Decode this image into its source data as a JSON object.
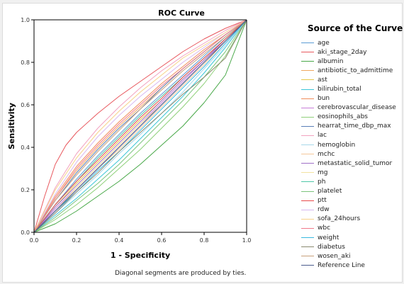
{
  "chart_data": {
    "type": "line",
    "title": "ROC Curve",
    "xlabel": "1 - Specificity",
    "ylabel": "Sensitivity",
    "xlim": [
      0.0,
      1.0
    ],
    "ylim": [
      0.0,
      1.0
    ],
    "xticks": [
      "0.0",
      "0.2",
      "0.4",
      "0.6",
      "0.8",
      "1.0"
    ],
    "yticks": [
      "0.0",
      "0.2",
      "0.4",
      "0.6",
      "0.8",
      "1.0"
    ],
    "grid": false,
    "legend_title": "Source of the Curve",
    "legend_position": "right",
    "footnote": "Diagonal segments are produced by ties.",
    "series": [
      {
        "name": "age",
        "color": "#5b9bd5",
        "points": [
          [
            0,
            0
          ],
          [
            0.1,
            0.13
          ],
          [
            0.2,
            0.25
          ],
          [
            0.3,
            0.36
          ],
          [
            0.4,
            0.46
          ],
          [
            0.5,
            0.56
          ],
          [
            0.6,
            0.65
          ],
          [
            0.7,
            0.74
          ],
          [
            0.8,
            0.83
          ],
          [
            0.9,
            0.92
          ],
          [
            1,
            1
          ]
        ]
      },
      {
        "name": "aki_stage_2day",
        "color": "#e8585e",
        "points": [
          [
            0,
            0
          ],
          [
            0.05,
            0.17
          ],
          [
            0.1,
            0.32
          ],
          [
            0.15,
            0.41
          ],
          [
            0.2,
            0.47
          ],
          [
            0.3,
            0.56
          ],
          [
            0.4,
            0.64
          ],
          [
            0.5,
            0.71
          ],
          [
            0.6,
            0.78
          ],
          [
            0.7,
            0.85
          ],
          [
            0.8,
            0.91
          ],
          [
            0.9,
            0.96
          ],
          [
            1,
            1
          ]
        ]
      },
      {
        "name": "albumin",
        "color": "#48a848",
        "points": [
          [
            0,
            0
          ],
          [
            0.1,
            0.04
          ],
          [
            0.2,
            0.1
          ],
          [
            0.3,
            0.17
          ],
          [
            0.4,
            0.24
          ],
          [
            0.5,
            0.32
          ],
          [
            0.6,
            0.41
          ],
          [
            0.7,
            0.5
          ],
          [
            0.8,
            0.61
          ],
          [
            0.9,
            0.74
          ],
          [
            1,
            1
          ]
        ]
      },
      {
        "name": "antibiotic_to_admittime",
        "color": "#f0a860",
        "points": [
          [
            0,
            0
          ],
          [
            0.1,
            0.16
          ],
          [
            0.2,
            0.29
          ],
          [
            0.3,
            0.4
          ],
          [
            0.4,
            0.5
          ],
          [
            0.5,
            0.59
          ],
          [
            0.6,
            0.68
          ],
          [
            0.7,
            0.77
          ],
          [
            0.8,
            0.85
          ],
          [
            0.9,
            0.93
          ],
          [
            1,
            1
          ]
        ]
      },
      {
        "name": "ast",
        "color": "#e6c84a",
        "points": [
          [
            0,
            0
          ],
          [
            0.1,
            0.12
          ],
          [
            0.2,
            0.23
          ],
          [
            0.3,
            0.33
          ],
          [
            0.4,
            0.43
          ],
          [
            0.5,
            0.53
          ],
          [
            0.6,
            0.62
          ],
          [
            0.7,
            0.72
          ],
          [
            0.8,
            0.81
          ],
          [
            0.9,
            0.91
          ],
          [
            1,
            1
          ]
        ]
      },
      {
        "name": "bilirubin_total",
        "color": "#3cc6d8",
        "points": [
          [
            0,
            0
          ],
          [
            0.1,
            0.08
          ],
          [
            0.2,
            0.16
          ],
          [
            0.3,
            0.25
          ],
          [
            0.4,
            0.34
          ],
          [
            0.5,
            0.44
          ],
          [
            0.6,
            0.54
          ],
          [
            0.7,
            0.64
          ],
          [
            0.8,
            0.75
          ],
          [
            0.9,
            0.87
          ],
          [
            1,
            1
          ]
        ]
      },
      {
        "name": "bun",
        "color": "#f08c5a",
        "points": [
          [
            0,
            0
          ],
          [
            0.1,
            0.17
          ],
          [
            0.2,
            0.31
          ],
          [
            0.3,
            0.42
          ],
          [
            0.4,
            0.52
          ],
          [
            0.5,
            0.61
          ],
          [
            0.6,
            0.7
          ],
          [
            0.7,
            0.78
          ],
          [
            0.8,
            0.86
          ],
          [
            0.9,
            0.93
          ],
          [
            1,
            1
          ]
        ]
      },
      {
        "name": "cerebrovascular_disease",
        "color": "#c77dd8",
        "points": [
          [
            0,
            0
          ],
          [
            0.1,
            0.11
          ],
          [
            0.2,
            0.21
          ],
          [
            0.3,
            0.31
          ],
          [
            0.4,
            0.41
          ],
          [
            0.5,
            0.51
          ],
          [
            0.6,
            0.61
          ],
          [
            0.7,
            0.71
          ],
          [
            0.8,
            0.81
          ],
          [
            0.9,
            0.9
          ],
          [
            1,
            1
          ]
        ]
      },
      {
        "name": "eosinophils_abs",
        "color": "#8fd07a",
        "points": [
          [
            0,
            0
          ],
          [
            0.1,
            0.06
          ],
          [
            0.2,
            0.13
          ],
          [
            0.3,
            0.21
          ],
          [
            0.4,
            0.3
          ],
          [
            0.5,
            0.39
          ],
          [
            0.6,
            0.49
          ],
          [
            0.7,
            0.59
          ],
          [
            0.8,
            0.7
          ],
          [
            0.9,
            0.83
          ],
          [
            1,
            1
          ]
        ]
      },
      {
        "name": "hearrat_time_dbp_max",
        "color": "#5a7fb8",
        "points": [
          [
            0,
            0
          ],
          [
            0.1,
            0.15
          ],
          [
            0.2,
            0.28
          ],
          [
            0.3,
            0.39
          ],
          [
            0.4,
            0.49
          ],
          [
            0.5,
            0.58
          ],
          [
            0.6,
            0.68
          ],
          [
            0.7,
            0.77
          ],
          [
            0.8,
            0.85
          ],
          [
            0.9,
            0.93
          ],
          [
            1,
            1
          ]
        ]
      },
      {
        "name": "lac",
        "color": "#f2a2c0",
        "points": [
          [
            0,
            0
          ],
          [
            0.1,
            0.21
          ],
          [
            0.2,
            0.37
          ],
          [
            0.3,
            0.49
          ],
          [
            0.4,
            0.59
          ],
          [
            0.5,
            0.68
          ],
          [
            0.6,
            0.76
          ],
          [
            0.7,
            0.83
          ],
          [
            0.8,
            0.89
          ],
          [
            0.9,
            0.95
          ],
          [
            1,
            1
          ]
        ]
      },
      {
        "name": "hemoglobin",
        "color": "#a8d8ea",
        "points": [
          [
            0,
            0
          ],
          [
            0.1,
            0.09
          ],
          [
            0.2,
            0.18
          ],
          [
            0.3,
            0.27
          ],
          [
            0.4,
            0.37
          ],
          [
            0.5,
            0.46
          ],
          [
            0.6,
            0.56
          ],
          [
            0.7,
            0.66
          ],
          [
            0.8,
            0.77
          ],
          [
            0.9,
            0.88
          ],
          [
            1,
            1
          ]
        ]
      },
      {
        "name": "mchc",
        "color": "#f5c79a",
        "points": [
          [
            0,
            0
          ],
          [
            0.1,
            0.1
          ],
          [
            0.2,
            0.2
          ],
          [
            0.3,
            0.3
          ],
          [
            0.4,
            0.39
          ],
          [
            0.5,
            0.49
          ],
          [
            0.6,
            0.59
          ],
          [
            0.7,
            0.69
          ],
          [
            0.8,
            0.79
          ],
          [
            0.9,
            0.9
          ],
          [
            1,
            1
          ]
        ]
      },
      {
        "name": "metastatic_solid_tumor",
        "color": "#a070c8",
        "points": [
          [
            0,
            0
          ],
          [
            0.1,
            0.12
          ],
          [
            0.2,
            0.22
          ],
          [
            0.3,
            0.32
          ],
          [
            0.4,
            0.42
          ],
          [
            0.5,
            0.52
          ],
          [
            0.6,
            0.62
          ],
          [
            0.7,
            0.72
          ],
          [
            0.8,
            0.81
          ],
          [
            0.9,
            0.91
          ],
          [
            1,
            1
          ]
        ]
      },
      {
        "name": "mg",
        "color": "#f3e3a0",
        "points": [
          [
            0,
            0
          ],
          [
            0.1,
            0.1
          ],
          [
            0.2,
            0.21
          ],
          [
            0.3,
            0.31
          ],
          [
            0.4,
            0.41
          ],
          [
            0.5,
            0.51
          ],
          [
            0.6,
            0.6
          ],
          [
            0.7,
            0.7
          ],
          [
            0.8,
            0.8
          ],
          [
            0.9,
            0.9
          ],
          [
            1,
            1
          ]
        ]
      },
      {
        "name": "ph",
        "color": "#4fc7a8",
        "points": [
          [
            0,
            0
          ],
          [
            0.1,
            0.13
          ],
          [
            0.2,
            0.24
          ],
          [
            0.3,
            0.35
          ],
          [
            0.4,
            0.45
          ],
          [
            0.5,
            0.55
          ],
          [
            0.6,
            0.64
          ],
          [
            0.7,
            0.73
          ],
          [
            0.8,
            0.82
          ],
          [
            0.9,
            0.91
          ],
          [
            1,
            1
          ]
        ]
      },
      {
        "name": "platelet",
        "color": "#7cc47c",
        "points": [
          [
            0,
            0
          ],
          [
            0.1,
            0.07
          ],
          [
            0.2,
            0.15
          ],
          [
            0.3,
            0.23
          ],
          [
            0.4,
            0.32
          ],
          [
            0.5,
            0.42
          ],
          [
            0.6,
            0.52
          ],
          [
            0.7,
            0.62
          ],
          [
            0.8,
            0.73
          ],
          [
            0.9,
            0.85
          ],
          [
            1,
            1
          ]
        ]
      },
      {
        "name": "ptt",
        "color": "#e84a4a",
        "points": [
          [
            0,
            0
          ],
          [
            0.1,
            0.13
          ],
          [
            0.2,
            0.24
          ],
          [
            0.3,
            0.34
          ],
          [
            0.4,
            0.44
          ],
          [
            0.5,
            0.54
          ],
          [
            0.6,
            0.63
          ],
          [
            0.7,
            0.73
          ],
          [
            0.8,
            0.82
          ],
          [
            0.9,
            0.91
          ],
          [
            1,
            1
          ]
        ]
      },
      {
        "name": "rdw",
        "color": "#d7b8f0",
        "points": [
          [
            0,
            0
          ],
          [
            0.1,
            0.18
          ],
          [
            0.2,
            0.33
          ],
          [
            0.3,
            0.45
          ],
          [
            0.4,
            0.55
          ],
          [
            0.5,
            0.64
          ],
          [
            0.6,
            0.72
          ],
          [
            0.7,
            0.8
          ],
          [
            0.8,
            0.87
          ],
          [
            0.9,
            0.94
          ],
          [
            1,
            1
          ]
        ]
      },
      {
        "name": "sofa_24hours",
        "color": "#f6d28a",
        "points": [
          [
            0,
            0
          ],
          [
            0.1,
            0.2
          ],
          [
            0.2,
            0.35
          ],
          [
            0.3,
            0.47
          ],
          [
            0.4,
            0.57
          ],
          [
            0.5,
            0.66
          ],
          [
            0.6,
            0.74
          ],
          [
            0.7,
            0.82
          ],
          [
            0.8,
            0.88
          ],
          [
            0.9,
            0.94
          ],
          [
            1,
            1
          ]
        ]
      },
      {
        "name": "wbc",
        "color": "#f07a8a",
        "points": [
          [
            0,
            0
          ],
          [
            0.1,
            0.16
          ],
          [
            0.2,
            0.3
          ],
          [
            0.3,
            0.41
          ],
          [
            0.4,
            0.51
          ],
          [
            0.5,
            0.6
          ],
          [
            0.6,
            0.69
          ],
          [
            0.7,
            0.77
          ],
          [
            0.8,
            0.85
          ],
          [
            0.9,
            0.93
          ],
          [
            1,
            1
          ]
        ]
      },
      {
        "name": "weight",
        "color": "#38b8e0",
        "points": [
          [
            0,
            0
          ],
          [
            0.1,
            0.1
          ],
          [
            0.2,
            0.19
          ],
          [
            0.3,
            0.29
          ],
          [
            0.4,
            0.38
          ],
          [
            0.5,
            0.48
          ],
          [
            0.6,
            0.58
          ],
          [
            0.7,
            0.68
          ],
          [
            0.8,
            0.78
          ],
          [
            0.9,
            0.89
          ],
          [
            1,
            1
          ]
        ]
      },
      {
        "name": "diabetus",
        "color": "#8a8a70",
        "points": [
          [
            0,
            0
          ],
          [
            0.1,
            0.09
          ],
          [
            0.2,
            0.19
          ],
          [
            0.3,
            0.28
          ],
          [
            0.4,
            0.38
          ],
          [
            0.5,
            0.47
          ],
          [
            0.6,
            0.56
          ],
          [
            0.7,
            0.65
          ],
          [
            0.8,
            0.73
          ],
          [
            0.9,
            0.82
          ],
          [
            1,
            1
          ]
        ]
      },
      {
        "name": "wosen_aki",
        "color": "#c7a07a",
        "points": [
          [
            0,
            0
          ],
          [
            0.1,
            0.15
          ],
          [
            0.2,
            0.27
          ],
          [
            0.3,
            0.38
          ],
          [
            0.4,
            0.48
          ],
          [
            0.5,
            0.58
          ],
          [
            0.6,
            0.67
          ],
          [
            0.7,
            0.76
          ],
          [
            0.8,
            0.84
          ],
          [
            0.9,
            0.92
          ],
          [
            1,
            1
          ]
        ]
      },
      {
        "name": "Reference Line",
        "color": "#4a5a8c",
        "points": [
          [
            0,
            0
          ],
          [
            1,
            1
          ]
        ]
      }
    ]
  }
}
